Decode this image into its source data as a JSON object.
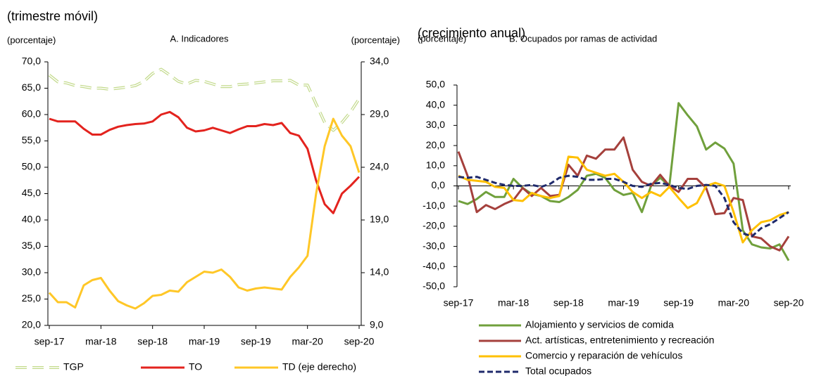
{
  "chart_data": [
    {
      "type": "line",
      "subtitle": "(trimestre móvil)",
      "title": "A. Indicadores",
      "ylabel": "(porcentaje)",
      "y2label": "(porcentaje)",
      "categories": [
        "sep-17",
        null,
        null,
        null,
        null,
        null,
        "mar-18",
        null,
        null,
        null,
        null,
        null,
        "sep-18",
        null,
        null,
        null,
        null,
        null,
        "mar-19",
        null,
        null,
        null,
        null,
        null,
        "sep-19",
        null,
        null,
        null,
        null,
        null,
        "mar-20",
        null,
        null,
        null,
        null,
        null,
        "sep-20"
      ],
      "ylim": [
        20,
        70
      ],
      "yticks": [
        {
          "value": 20,
          "label": "20,0"
        },
        {
          "value": 25,
          "label": "25,0"
        },
        {
          "value": 30,
          "label": "30,0"
        },
        {
          "value": 35,
          "label": "35,0"
        },
        {
          "value": 40,
          "label": "40,0"
        },
        {
          "value": 45,
          "label": "45,0"
        },
        {
          "value": 50,
          "label": "50,0"
        },
        {
          "value": 55,
          "label": "55,0"
        },
        {
          "value": 60,
          "label": "60,0"
        },
        {
          "value": 65,
          "label": "65,0"
        },
        {
          "value": 70,
          "label": "70,0"
        }
      ],
      "y2lim": [
        9,
        34
      ],
      "y2ticks": [
        {
          "value": 9,
          "label": "9,0"
        },
        {
          "value": 14,
          "label": "14,0"
        },
        {
          "value": 19,
          "label": "19,0"
        },
        {
          "value": 24,
          "label": "24,0"
        },
        {
          "value": 29,
          "label": "29,0"
        },
        {
          "value": 34,
          "label": "34,0"
        }
      ],
      "legend": "row",
      "series": [
        {
          "name": "TGP",
          "color": "#c3da8c",
          "style": "double-dashed",
          "values": [
            67.5,
            66.2,
            66,
            65.5,
            65.3,
            65,
            65,
            64.8,
            65,
            65.2,
            65.5,
            66.3,
            67.8,
            68.6,
            67.5,
            66.3,
            65.8,
            66.5,
            66.3,
            65.8,
            65.3,
            65.3,
            65.7,
            65.8,
            66,
            66.2,
            66.4,
            66.4,
            66.5,
            65.6,
            65.6,
            62,
            58.5,
            57,
            58.5,
            60.5,
            63
          ]
        },
        {
          "name": "TO",
          "color": "#e3231e",
          "style": "solid",
          "values": [
            59.2,
            58.7,
            58.7,
            58.7,
            57.3,
            56.2,
            56.2,
            57.1,
            57.7,
            58,
            58.2,
            58.3,
            58.7,
            60,
            60.5,
            59.5,
            57.5,
            56.8,
            57,
            57.5,
            57,
            56.5,
            57.2,
            57.8,
            57.8,
            58.2,
            58,
            58.4,
            56.5,
            56,
            53.5,
            47.5,
            43,
            41.3,
            45,
            46.5,
            48.2
          ]
        },
        {
          "name": "TD (eje derecho)",
          "color": "#ffc727",
          "style": "solid",
          "axis": "y2",
          "values": [
            12.1,
            11.2,
            11.2,
            10.7,
            12.8,
            13.3,
            13.5,
            12.3,
            11.3,
            10.9,
            10.6,
            11.1,
            11.8,
            11.9,
            12.3,
            12.2,
            13.1,
            13.6,
            14.1,
            14,
            14.3,
            13.6,
            12.6,
            12.3,
            12.5,
            12.6,
            12.5,
            12.4,
            13.6,
            14.5,
            15.6,
            21.5,
            26,
            28.6,
            27,
            26,
            23.5
          ]
        }
      ]
    },
    {
      "type": "line",
      "subtitle": "(crecimiento anual)",
      "title": "B. Ocupados por ramas de actividad",
      "ylabel": "(porcentaje)",
      "categories": [
        "sep-17",
        null,
        null,
        null,
        null,
        null,
        "mar-18",
        null,
        null,
        null,
        null,
        null,
        "sep-18",
        null,
        null,
        null,
        null,
        null,
        "mar-19",
        null,
        null,
        null,
        null,
        null,
        "sep-19",
        null,
        null,
        null,
        null,
        null,
        "mar-20",
        null,
        null,
        null,
        null,
        null,
        "sep-20"
      ],
      "ylim": [
        -50,
        50
      ],
      "yticks": [
        {
          "value": -50,
          "label": "-50,0"
        },
        {
          "value": -40,
          "label": "-40,0"
        },
        {
          "value": -30,
          "label": "-30,0"
        },
        {
          "value": -20,
          "label": "-20,0"
        },
        {
          "value": -10,
          "label": "-10,0"
        },
        {
          "value": 0,
          "label": "0,0"
        },
        {
          "value": 10,
          "label": "10,0"
        },
        {
          "value": 20,
          "label": "20,0"
        },
        {
          "value": 30,
          "label": "30,0"
        },
        {
          "value": 40,
          "label": "40,0"
        },
        {
          "value": 50,
          "label": "50,0"
        }
      ],
      "legend": "column",
      "series": [
        {
          "name": "Alojamiento y servicios de comida",
          "color": "#70a03c",
          "style": "solid",
          "values": [
            -7.5,
            -9,
            -6.5,
            -3,
            -5.5,
            -5.5,
            3.5,
            -1,
            -4,
            -5,
            -7.5,
            -8,
            -5.5,
            -2,
            5,
            6,
            4,
            -2,
            -4.5,
            -3.5,
            -13,
            0,
            4,
            0,
            41,
            35,
            29.5,
            18,
            21.5,
            18.5,
            11,
            -22,
            -29,
            -30.5,
            -31,
            -29,
            -37
          ]
        },
        {
          "name": "Act. artísticas, entretenimiento y recreación",
          "color": "#a5403c",
          "style": "solid",
          "values": [
            17,
            5,
            -13,
            -9.5,
            -11.5,
            -9,
            -7,
            -1,
            -5,
            -1,
            -5,
            -4.5,
            10.5,
            5,
            15,
            13.5,
            18,
            18,
            24,
            8,
            2,
            0,
            5.5,
            0,
            -3,
            3.5,
            3.5,
            -1,
            -14,
            -13.5,
            -6,
            -7,
            -25,
            -26,
            -30,
            -32,
            -25
          ]
        },
        {
          "name": "Comercio y reparación de vehículos",
          "color": "#ffc000",
          "style": "solid",
          "values": [
            5,
            3,
            2.5,
            2,
            -0.5,
            -1,
            -7,
            -7.5,
            -3.5,
            -5,
            -6,
            -5,
            14.5,
            14,
            8,
            6.5,
            5,
            6,
            2,
            -3,
            -6,
            -3,
            -5,
            -0.5,
            -6,
            -11,
            -8.5,
            0,
            1.5,
            0,
            -13,
            -28,
            -22,
            -18,
            -17,
            -14.5,
            -13
          ]
        },
        {
          "name": "Total ocupados",
          "color": "#1f2a6b",
          "style": "dashed",
          "values": [
            4.5,
            4,
            4.5,
            3,
            1.5,
            0.5,
            0,
            0,
            0.5,
            -0.5,
            1,
            4,
            5,
            4.5,
            3,
            3,
            3.5,
            3.5,
            2,
            0,
            -0.5,
            1,
            1.5,
            0.5,
            -1,
            -1.5,
            0,
            0.5,
            0,
            -6,
            -18,
            -23.5,
            -25,
            -21,
            -19,
            -16,
            -13
          ]
        }
      ]
    }
  ]
}
